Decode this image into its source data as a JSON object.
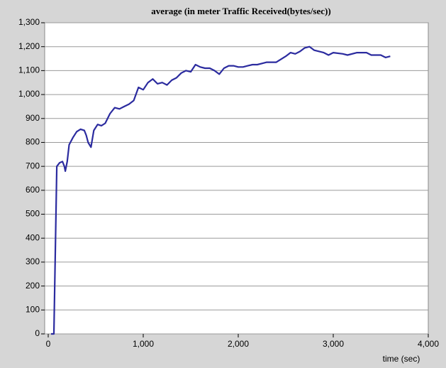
{
  "chart_data": {
    "type": "line",
    "title": "average (in meter Traffic Received(bytes/sec))",
    "x_label": "time (sec)",
    "xlim": [
      0,
      4000
    ],
    "xticks": [
      0,
      {
        "value": 1000,
        "label": "1,000"
      },
      {
        "value": 2000,
        "label": "2,000"
      },
      {
        "value": 3000,
        "label": "3,000"
      },
      {
        "value": 4000,
        "label": "4,000"
      }
    ],
    "ylim": [
      0,
      1300
    ],
    "yticks": [
      0,
      100,
      200,
      300,
      400,
      500,
      600,
      700,
      800,
      900,
      {
        "value": 1000,
        "label": "1,000"
      },
      {
        "value": 1100,
        "label": "1,100"
      },
      {
        "value": 1200,
        "label": "1,200"
      },
      {
        "value": 1300,
        "label": "1,300"
      }
    ],
    "grid": true,
    "series": [
      {
        "name": "average",
        "color": "#2b2b9f",
        "x": [
          30,
          60,
          90,
          120,
          150,
          170,
          180,
          200,
          220,
          260,
          300,
          340,
          380,
          400,
          420,
          450,
          480,
          520,
          560,
          600,
          650,
          700,
          750,
          800,
          850,
          900,
          950,
          1000,
          1050,
          1100,
          1150,
          1200,
          1250,
          1300,
          1350,
          1400,
          1450,
          1500,
          1550,
          1600,
          1650,
          1700,
          1750,
          1800,
          1850,
          1900,
          1950,
          2000,
          2050,
          2100,
          2150,
          2200,
          2250,
          2300,
          2400,
          2500,
          2550,
          2600,
          2650,
          2700,
          2750,
          2800,
          2900,
          2950,
          3000,
          3100,
          3150,
          3250,
          3350,
          3400,
          3500,
          3550,
          3600
        ],
        "values": [
          0,
          0,
          700,
          715,
          720,
          700,
          680,
          720,
          790,
          820,
          845,
          855,
          850,
          830,
          800,
          780,
          850,
          875,
          870,
          880,
          920,
          945,
          940,
          950,
          960,
          975,
          1030,
          1020,
          1050,
          1065,
          1045,
          1050,
          1040,
          1060,
          1070,
          1090,
          1100,
          1095,
          1125,
          1115,
          1110,
          1110,
          1100,
          1085,
          1110,
          1120,
          1120,
          1115,
          1115,
          1120,
          1125,
          1125,
          1130,
          1135,
          1135,
          1160,
          1175,
          1170,
          1180,
          1195,
          1200,
          1185,
          1175,
          1165,
          1175,
          1170,
          1165,
          1175,
          1175,
          1165,
          1165,
          1155,
          1160
        ]
      }
    ]
  }
}
